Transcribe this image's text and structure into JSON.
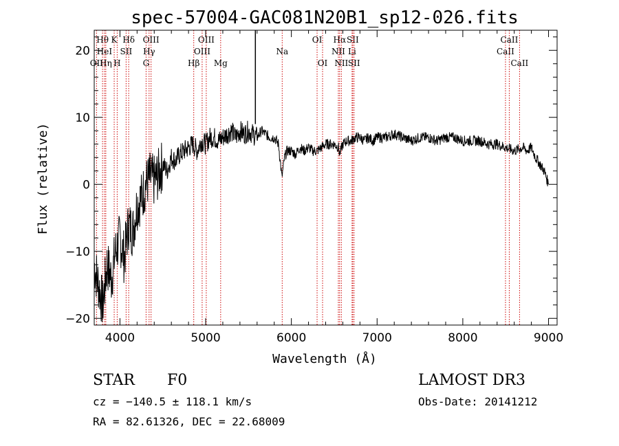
{
  "chart_data": {
    "type": "line",
    "title": "spec-57004-GAC081N20B1_sp12-026.fits",
    "xlabel": "Wavelength (Å)",
    "ylabel": "Flux (relative)",
    "xlim": [
      3700,
      9100
    ],
    "ylim": [
      -21,
      23
    ],
    "xticks": [
      4000,
      5000,
      6000,
      7000,
      8000,
      9000
    ],
    "yticks": [
      -20,
      -10,
      0,
      10,
      20
    ],
    "series": [
      {
        "name": "flux",
        "x": [
          3700,
          3750,
          3800,
          3850,
          3900,
          3950,
          4000,
          4050,
          4100,
          4150,
          4200,
          4250,
          4300,
          4350,
          4400,
          4450,
          4500,
          4550,
          4600,
          4650,
          4700,
          4750,
          4800,
          4850,
          4900,
          4950,
          5000,
          5050,
          5100,
          5150,
          5200,
          5250,
          5300,
          5350,
          5400,
          5450,
          5500,
          5550,
          5600,
          5650,
          5700,
          5750,
          5800,
          5850,
          5890,
          5920,
          5950,
          6000,
          6050,
          6100,
          6150,
          6200,
          6250,
          6300,
          6350,
          6400,
          6450,
          6500,
          6550,
          6563,
          6600,
          6650,
          6700,
          6750,
          6800,
          6850,
          6900,
          6950,
          7000,
          7100,
          7200,
          7300,
          7400,
          7500,
          7600,
          7700,
          7800,
          7900,
          8000,
          8100,
          8200,
          8300,
          8400,
          8500,
          8600,
          8700,
          8750,
          8800,
          8850,
          8900,
          8950,
          9000
        ],
        "y": [
          -12,
          -15,
          -18,
          -12,
          -14,
          -10,
          -8,
          -11,
          -6,
          -7,
          -3,
          -2,
          0,
          1,
          0.5,
          1.5,
          3,
          2,
          4,
          3.5,
          4.5,
          5,
          5.5,
          6,
          5,
          6.5,
          6,
          7,
          7,
          6.5,
          7,
          7.5,
          8,
          7,
          8,
          7.5,
          8,
          7.5,
          7,
          8,
          7.5,
          7,
          7,
          6,
          1,
          4,
          5,
          5,
          4.5,
          5.5,
          5,
          5.5,
          5,
          5,
          5.5,
          6,
          6,
          6,
          5.5,
          4.5,
          6,
          6.5,
          6.5,
          7,
          7,
          6.5,
          7,
          6.5,
          7,
          7,
          7.5,
          7,
          6.5,
          7,
          7,
          6.5,
          7,
          7,
          6.5,
          6.5,
          6.5,
          6,
          6,
          5.5,
          5,
          5.5,
          5,
          5.5,
          4,
          3,
          2,
          0
        ]
      }
    ],
    "spike": {
      "x": 5580,
      "y_top": 23,
      "y_bottom": 9
    },
    "lines": [
      {
        "label": "Hθ",
        "wavelength": 3797,
        "row": 1
      },
      {
        "label": "OII",
        "wavelength": 3727,
        "row": 3
      },
      {
        "label": "HeI",
        "wavelength": 3820,
        "row": 2
      },
      {
        "label": "Hη",
        "wavelength": 3835,
        "row": 3
      },
      {
        "label": "K",
        "wavelength": 3933,
        "row": 1
      },
      {
        "label": "H",
        "wavelength": 3968,
        "row": 3
      },
      {
        "label": "SII",
        "wavelength": 4072,
        "row": 2
      },
      {
        "label": "Hδ",
        "wavelength": 4102,
        "row": 1
      },
      {
        "label": "OIII",
        "wavelength": 4363,
        "row": 1
      },
      {
        "label": "Hγ",
        "wavelength": 4340,
        "row": 2
      },
      {
        "label": "G",
        "wavelength": 4305,
        "row": 3
      },
      {
        "label": "Hβ",
        "wavelength": 4861,
        "row": 3
      },
      {
        "label": "OIII",
        "wavelength": 5007,
        "row": 1
      },
      {
        "label": "OIII",
        "wavelength": 4959,
        "row": 2
      },
      {
        "label": "Mg",
        "wavelength": 5175,
        "row": 3
      },
      {
        "label": "Na",
        "wavelength": 5893,
        "row": 2
      },
      {
        "label": "OI",
        "wavelength": 6300,
        "row": 1
      },
      {
        "label": "OI",
        "wavelength": 6364,
        "row": 3
      },
      {
        "label": "Hα",
        "wavelength": 6563,
        "row": 1
      },
      {
        "label": "NII",
        "wavelength": 6548,
        "row": 2
      },
      {
        "label": "NII",
        "wavelength": 6583,
        "row": 3
      },
      {
        "label": "SII",
        "wavelength": 6716,
        "row": 1
      },
      {
        "label": "Li",
        "wavelength": 6708,
        "row": 2
      },
      {
        "label": "SII",
        "wavelength": 6731,
        "row": 3
      },
      {
        "label": "CaII",
        "wavelength": 8498,
        "row": 2
      },
      {
        "label": "CaII",
        "wavelength": 8542,
        "row": 1
      },
      {
        "label": "CaII",
        "wavelength": 8662,
        "row": 3
      }
    ]
  },
  "info": {
    "class": "STAR",
    "subclass": "F0",
    "survey": "LAMOST DR3",
    "cz": "cz = −140.5 ± 118.1 km/s",
    "obs_date": "Obs-Date: 20141212",
    "coords": "RA =  82.61326, DEC =  22.68009"
  },
  "colors": {
    "spectrum": "#000000",
    "line_marker": "#cc0000",
    "axis": "#000000"
  }
}
